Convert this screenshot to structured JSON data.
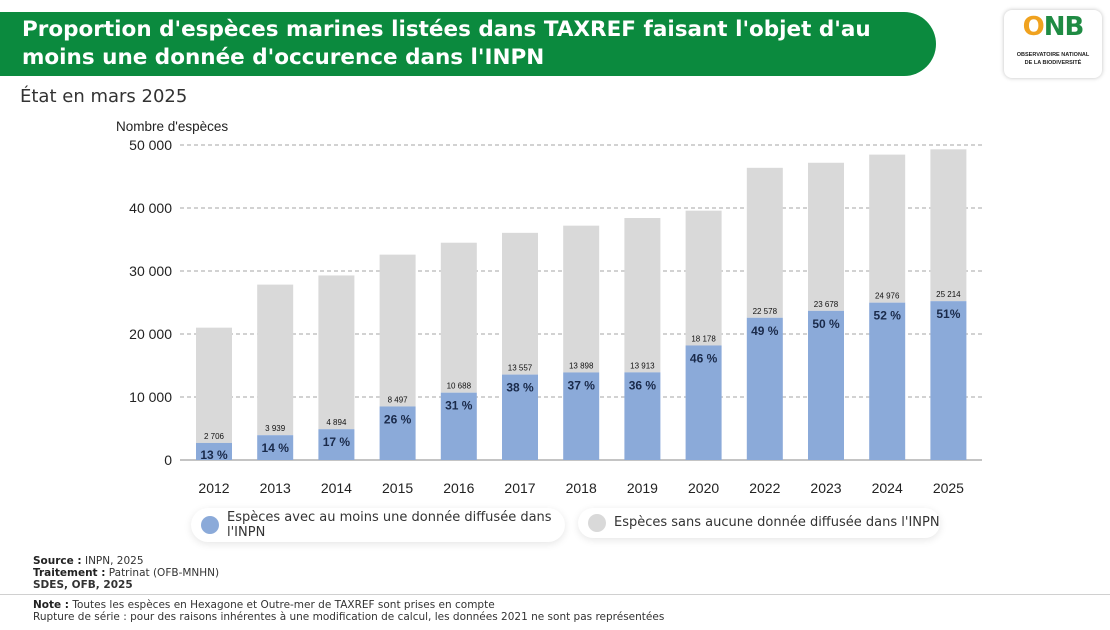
{
  "header": {
    "title": "Proportion d'espèces marines listées dans TAXREF faisant l'objet d'au moins une donnée d'occurence dans l'INPN"
  },
  "logo": {
    "text_o": "O",
    "text_nb": "NB",
    "line1": "OBSERVATOIRE NATIONAL",
    "line2": "DE LA BIODIVERSITÉ"
  },
  "subtitle": "État en mars 2025",
  "chart_data": {
    "type": "bar",
    "stacked": true,
    "ylabel": "Nombre d'espèces",
    "ylim": [
      0,
      50000
    ],
    "yticks": [
      0,
      10000,
      20000,
      30000,
      40000,
      50000
    ],
    "ytick_labels": [
      "0",
      "10 000",
      "20 000",
      "30 000",
      "40 000",
      "50 000"
    ],
    "grid": true,
    "categories": [
      "2012",
      "2013",
      "2014",
      "2015",
      "2016",
      "2017",
      "2018",
      "2019",
      "2020",
      "2022",
      "2023",
      "2024",
      "2025"
    ],
    "series": [
      {
        "name": "Espèces avec au moins une donnée diffusée dans l'INPN",
        "color": "#8baad9",
        "values": [
          2706,
          3939,
          4894,
          8497,
          10688,
          13557,
          13898,
          13913,
          18178,
          22578,
          23678,
          24976,
          25214
        ],
        "value_labels": [
          "2 706",
          "3 939",
          "4 894",
          "8 497",
          "10 688",
          "13 557",
          "13 898",
          "13 913",
          "18 178",
          "22 578",
          "23 678",
          "24 976",
          "25 214"
        ],
        "percent_labels": [
          "13 %",
          "14 %",
          "17 %",
          "26 %",
          "31 %",
          "38 %",
          "37 %",
          "36 %",
          "46 %",
          "49 %",
          "50 %",
          "52 %",
          "51%"
        ]
      },
      {
        "name": "Espèces sans aucune donnée diffusée dans l'INPN",
        "color": "#d9d9d9",
        "values": [
          18300,
          23900,
          24400,
          24100,
          23800,
          22500,
          23300,
          24500,
          21400,
          23800,
          23500,
          23500,
          24100
        ]
      }
    ]
  },
  "legend": {
    "item1": "Espèces avec au moins une donnée diffusée dans l'INPN",
    "item2": "Espèces sans aucune donnée diffusée dans l'INPN"
  },
  "footer": {
    "source_label": "Source :",
    "source_text": " INPN, 2025",
    "treatment_label": "Traitement :",
    "treatment_text": " Patrinat (OFB-MNHN)",
    "publisher": "SDES, OFB, 2025",
    "note_label": "Note :",
    "note_text": " Toutes les espèces en Hexagone et Outre-mer de TAXREF sont prises en compte",
    "rupture": "Rupture de série : pour des raisons inhérentes à une modification de calcul, les données 2021 ne sont pas représentées"
  }
}
